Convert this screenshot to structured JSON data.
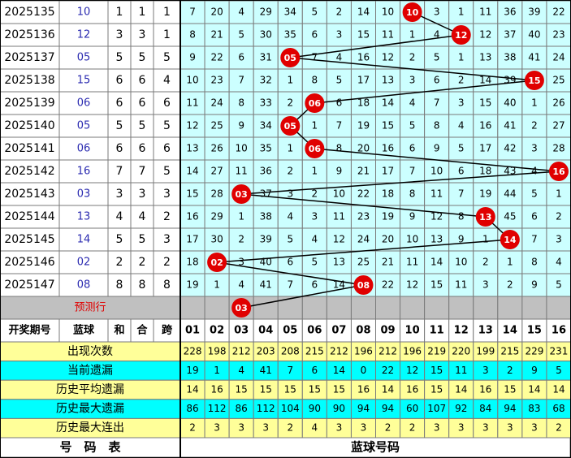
{
  "header": {
    "period": "开奖期号",
    "blue": "蓝球",
    "sum": "和",
    "he": "合",
    "span": "跨",
    "numbers": [
      "01",
      "02",
      "03",
      "04",
      "05",
      "06",
      "07",
      "08",
      "09",
      "10",
      "11",
      "12",
      "13",
      "14",
      "15",
      "16"
    ]
  },
  "rows": [
    {
      "period": 2025135,
      "blue": "10",
      "sum": 1,
      "he": 1,
      "span": 1,
      "cells": [
        7,
        20,
        4,
        29,
        34,
        5,
        2,
        14,
        10,
        "10",
        3,
        1,
        11,
        36,
        39,
        22
      ]
    },
    {
      "period": 2025136,
      "blue": "12",
      "sum": 3,
      "he": 3,
      "span": 1,
      "cells": [
        8,
        21,
        5,
        30,
        35,
        6,
        3,
        15,
        11,
        1,
        4,
        "12",
        12,
        37,
        40,
        23
      ]
    },
    {
      "period": 2025137,
      "blue": "05",
      "sum": 5,
      "he": 5,
      "span": 5,
      "cells": [
        9,
        22,
        6,
        31,
        "05",
        7,
        4,
        16,
        12,
        2,
        5,
        1,
        13,
        38,
        41,
        24
      ]
    },
    {
      "period": 2025138,
      "blue": "15",
      "sum": 6,
      "he": 6,
      "span": 4,
      "cells": [
        10,
        23,
        7,
        32,
        1,
        8,
        5,
        17,
        13,
        3,
        6,
        2,
        14,
        39,
        "15",
        25
      ]
    },
    {
      "period": 2025139,
      "blue": "06",
      "sum": 6,
      "he": 6,
      "span": 6,
      "cells": [
        11,
        24,
        8,
        33,
        2,
        "06",
        6,
        18,
        14,
        4,
        7,
        3,
        15,
        40,
        1,
        26
      ]
    },
    {
      "period": 2025140,
      "blue": "05",
      "sum": 5,
      "he": 5,
      "span": 5,
      "cells": [
        12,
        25,
        9,
        34,
        "05",
        1,
        7,
        19,
        15,
        5,
        8,
        4,
        16,
        41,
        2,
        27
      ]
    },
    {
      "period": 2025141,
      "blue": "06",
      "sum": 6,
      "he": 6,
      "span": 6,
      "cells": [
        13,
        26,
        10,
        35,
        1,
        "06",
        8,
        20,
        16,
        6,
        9,
        5,
        17,
        42,
        3,
        28
      ]
    },
    {
      "period": 2025142,
      "blue": "16",
      "sum": 7,
      "he": 7,
      "span": 5,
      "cells": [
        14,
        27,
        11,
        36,
        2,
        1,
        9,
        21,
        17,
        7,
        10,
        6,
        18,
        43,
        4,
        "16"
      ]
    },
    {
      "period": 2025143,
      "blue": "03",
      "sum": 3,
      "he": 3,
      "span": 3,
      "cells": [
        15,
        28,
        "03",
        37,
        3,
        2,
        10,
        22,
        18,
        8,
        11,
        7,
        19,
        44,
        5,
        1
      ]
    },
    {
      "period": 2025144,
      "blue": "13",
      "sum": 4,
      "he": 4,
      "span": 2,
      "cells": [
        16,
        29,
        1,
        38,
        4,
        3,
        11,
        23,
        19,
        9,
        12,
        8,
        "13",
        45,
        6,
        2
      ]
    },
    {
      "period": 2025145,
      "blue": "14",
      "sum": 5,
      "he": 5,
      "span": 3,
      "cells": [
        17,
        30,
        2,
        39,
        5,
        4,
        12,
        24,
        20,
        10,
        13,
        9,
        1,
        "14",
        7,
        3
      ]
    },
    {
      "period": 2025146,
      "blue": "02",
      "sum": 2,
      "he": 2,
      "span": 2,
      "cells": [
        18,
        "02",
        3,
        40,
        6,
        5,
        13,
        25,
        21,
        11,
        14,
        10,
        2,
        1,
        8,
        4
      ]
    },
    {
      "period": 2025147,
      "blue": "08",
      "sum": 8,
      "he": 8,
      "span": 8,
      "cells": [
        19,
        1,
        4,
        41,
        7,
        6,
        14,
        "08",
        22,
        12,
        15,
        11,
        3,
        2,
        9,
        5
      ]
    }
  ],
  "prediction": {
    "label": "预测行",
    "ball": "03"
  },
  "stats": [
    {
      "label": "出现次数",
      "values": [
        228,
        198,
        212,
        203,
        208,
        215,
        212,
        196,
        212,
        196,
        219,
        220,
        199,
        215,
        229,
        231
      ]
    },
    {
      "label": "当前遗漏",
      "values": [
        19,
        1,
        4,
        41,
        7,
        6,
        14,
        0,
        22,
        12,
        15,
        11,
        3,
        2,
        9,
        5
      ]
    },
    {
      "label": "历史平均遗漏",
      "values": [
        14,
        16,
        15,
        15,
        15,
        15,
        15,
        16,
        14,
        16,
        15,
        14,
        16,
        15,
        14,
        14
      ]
    },
    {
      "label": "历史最大遗漏",
      "values": [
        86,
        112,
        86,
        112,
        104,
        90,
        90,
        94,
        94,
        60,
        107,
        92,
        84,
        94,
        83,
        68
      ]
    },
    {
      "label": "历史最大连出",
      "values": [
        2,
        3,
        3,
        3,
        2,
        4,
        3,
        3,
        2,
        2,
        3,
        3,
        3,
        3,
        3,
        2
      ]
    }
  ],
  "footer": {
    "left": "号　码　表",
    "right": "蓝球号码"
  }
}
